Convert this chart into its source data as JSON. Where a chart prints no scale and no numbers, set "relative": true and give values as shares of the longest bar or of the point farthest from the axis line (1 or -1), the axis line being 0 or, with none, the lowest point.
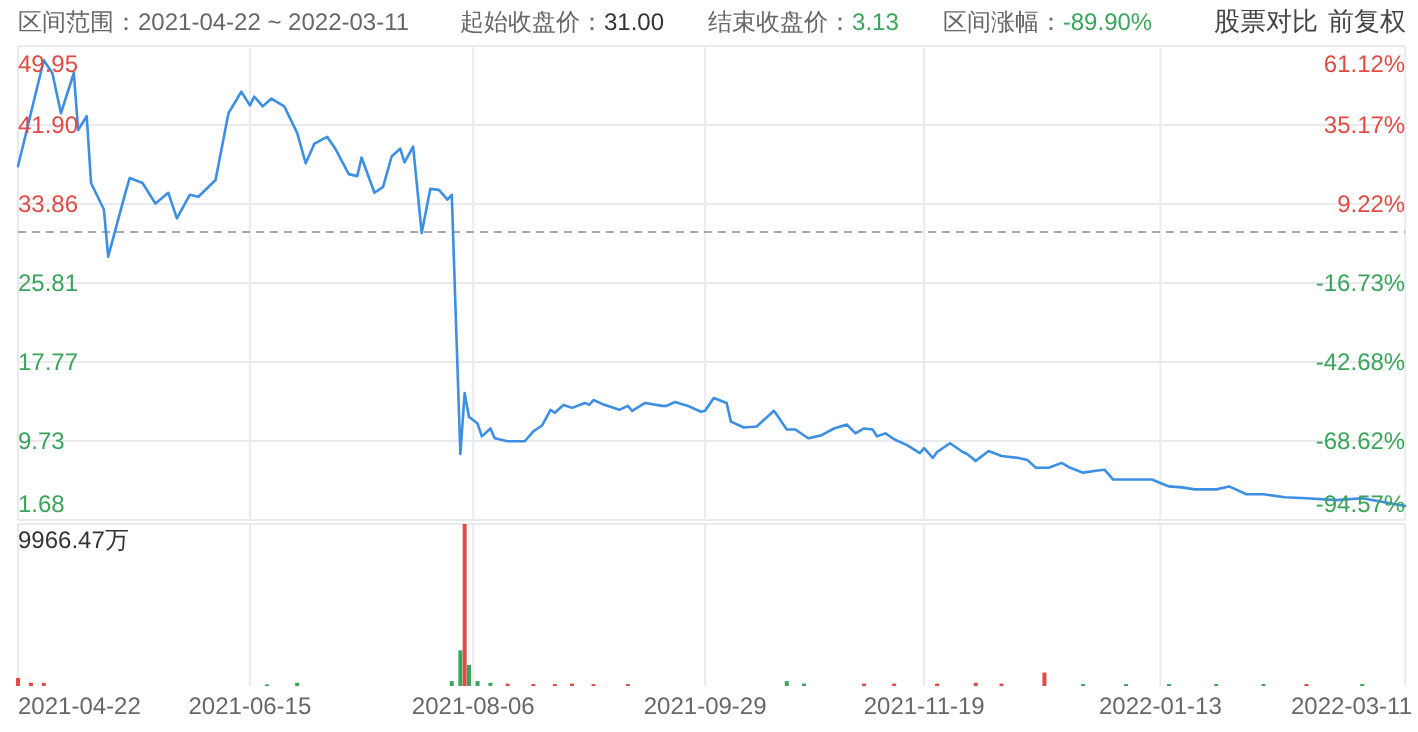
{
  "chart_data": [
    {
      "type": "line",
      "title": "区间范围：2021-04-22 ~ 2022-03-11",
      "annotations": [
        "起始收盘价：31.00",
        "结束收盘价：3.13",
        "区间涨幅：-89.90%",
        "股票对比",
        "前复权"
      ],
      "x": [
        "2021-04-22",
        "2021-04-25",
        "2021-04-28",
        "2021-04-30",
        "2021-05-02",
        "2021-05-05",
        "2021-05-06",
        "2021-05-08",
        "2021-05-09",
        "2021-05-12",
        "2021-05-13",
        "2021-05-17",
        "2021-05-18",
        "2021-05-21",
        "2021-05-24",
        "2021-05-27",
        "2021-05-29",
        "2021-06-01",
        "2021-06-03",
        "2021-06-07",
        "2021-06-10",
        "2021-06-13",
        "2021-06-15",
        "2021-06-16",
        "2021-06-18",
        "2021-06-20",
        "2021-06-23",
        "2021-06-26",
        "2021-06-28",
        "2021-06-30",
        "2021-07-03",
        "2021-07-05",
        "2021-07-08",
        "2021-07-10",
        "2021-07-11",
        "2021-07-14",
        "2021-07-16",
        "2021-07-18",
        "2021-07-20",
        "2021-07-21",
        "2021-07-23",
        "2021-07-25",
        "2021-07-27",
        "2021-07-29",
        "2021-07-31",
        "2021-08-01",
        "2021-08-03",
        "2021-08-04",
        "2021-08-05",
        "2021-08-07",
        "2021-08-08",
        "2021-08-10",
        "2021-08-11",
        "2021-08-14",
        "2021-08-18",
        "2021-08-20",
        "2021-08-22",
        "2021-08-24",
        "2021-08-25",
        "2021-08-27",
        "2021-08-29",
        "2021-09-01",
        "2021-09-02",
        "2021-09-03",
        "2021-09-05",
        "2021-09-09",
        "2021-09-11",
        "2021-09-12",
        "2021-09-15",
        "2021-09-19",
        "2021-09-20",
        "2021-09-22",
        "2021-09-25",
        "2021-09-28",
        "2021-09-29",
        "2021-10-01",
        "2021-10-04",
        "2021-10-05",
        "2021-10-08",
        "2021-10-11",
        "2021-10-15",
        "2021-10-16",
        "2021-10-18",
        "2021-10-20",
        "2021-10-23",
        "2021-10-26",
        "2021-10-29",
        "2021-11-01",
        "2021-11-03",
        "2021-11-05",
        "2021-11-07",
        "2021-11-08",
        "2021-11-10",
        "2021-11-12",
        "2021-11-15",
        "2021-11-18",
        "2021-11-19",
        "2021-11-21",
        "2021-11-22",
        "2021-11-25",
        "2021-11-28",
        "2021-11-29",
        "2021-12-01",
        "2021-12-04",
        "2021-12-07",
        "2021-12-11",
        "2021-12-13",
        "2021-12-15",
        "2021-12-18",
        "2021-12-21",
        "2021-12-23",
        "2021-12-26",
        "2021-12-29",
        "2021-12-31",
        "2022-01-02",
        "2022-01-11",
        "2022-01-15",
        "2022-01-18",
        "2022-01-21",
        "2022-01-26",
        "2022-01-29",
        "2022-02-02",
        "2022-02-06",
        "2022-02-11",
        "2022-02-16",
        "2022-02-23",
        "2022-03-01",
        "2022-03-11"
      ],
      "series": [
        {
          "color": "#3d8fe3",
          "values": [
            37.7,
            43.1,
            48.5,
            47.2,
            43.1,
            47.2,
            41.4,
            42.8,
            36.0,
            33.3,
            28.5,
            35.0,
            36.5,
            36.0,
            33.9,
            35.0,
            32.4,
            34.8,
            34.6,
            36.3,
            43.1,
            45.3,
            43.9,
            44.8,
            43.8,
            44.6,
            43.8,
            41.1,
            38.0,
            40.0,
            40.7,
            39.4,
            36.9,
            36.7,
            38.6,
            35.0,
            35.6,
            38.7,
            39.5,
            38.1,
            39.7,
            30.9,
            35.4,
            35.3,
            34.3,
            34.8,
            8.4,
            14.6,
            12.2,
            11.5,
            10.2,
            11.0,
            10.0,
            9.7,
            9.7,
            10.7,
            11.3,
            12.9,
            12.6,
            13.4,
            13.1,
            13.6,
            13.4,
            13.9,
            13.5,
            12.9,
            13.3,
            12.8,
            13.6,
            13.3,
            13.3,
            13.7,
            13.3,
            12.7,
            12.8,
            14.1,
            13.6,
            11.7,
            11.1,
            11.2,
            12.8,
            12.2,
            10.9,
            10.9,
            10.0,
            10.3,
            11.0,
            11.4,
            10.5,
            11.0,
            10.9,
            10.2,
            10.5,
            9.9,
            9.3,
            8.5,
            9.0,
            8.0,
            8.6,
            9.5,
            8.6,
            8.4,
            7.7,
            8.7,
            8.2,
            8.0,
            7.8,
            7.0,
            7.0,
            7.5,
            7.0,
            6.5,
            6.7,
            6.8,
            5.8,
            5.8,
            5.1,
            5.0,
            4.8,
            4.8,
            5.1,
            4.3,
            4.3,
            4.0,
            3.9,
            3.7,
            3.9,
            3.1
          ]
        }
      ],
      "marker": "none",
      "line_style": "solid",
      "xlim": [
        "2021-04-22",
        "2022-03-11"
      ],
      "xticks": [
        "2021-04-22",
        "2021-06-15",
        "2021-08-06",
        "2021-09-29",
        "2021-11-19",
        "2022-01-13",
        "2022-03-11"
      ],
      "ylim": [
        1.68,
        49.95
      ],
      "yticks": [
        1.68,
        9.73,
        17.77,
        25.81,
        33.86,
        {
          "value": 41.9,
          "label": "41.90"
        },
        49.95
      ],
      "y2lim": [
        -94.57,
        61.12
      ],
      "y2ticks": [
        {
          "value": -94.57,
          "label": "-94.57%"
        },
        {
          "value": -68.62,
          "label": "-68.62%"
        },
        {
          "value": -42.68,
          "label": "-42.68%"
        },
        {
          "value": -16.73,
          "label": "-16.73%"
        },
        {
          "value": 9.22,
          "label": "9.22%"
        },
        {
          "value": 35.17,
          "label": "35.17%"
        },
        {
          "value": 61.12,
          "label": "61.12%"
        }
      ],
      "ref_lines": [
        {
          "axis": "y",
          "value": 31.0,
          "color": "#aaaaaa",
          "line_style": "dashed"
        }
      ],
      "grid": true,
      "tick_labels": "y"
    },
    {
      "type": "bar",
      "relative": true,
      "annotations": [
        "9966.47万"
      ],
      "x": [
        "2021-04-22",
        "2021-04-25",
        "2021-04-28",
        "2021-06-19",
        "2021-06-26",
        "2021-08-01",
        "2021-08-03",
        "2021-08-04",
        "2021-08-05",
        "2021-08-07",
        "2021-08-10",
        "2021-08-14",
        "2021-08-20",
        "2021-08-25",
        "2021-08-29",
        "2021-09-03",
        "2021-09-11",
        "2021-10-18",
        "2021-10-22",
        "2021-11-05",
        "2021-11-12",
        "2021-11-22",
        "2021-12-01",
        "2021-12-07",
        "2021-12-17",
        "2021-12-26",
        "2022-01-05",
        "2022-01-15",
        "2022-01-26",
        "2022-02-06",
        "2022-02-16",
        "2022-03-01"
      ],
      "values": [
        0.05,
        0.02,
        0.02,
        0.01,
        0.02,
        0.03,
        0.22,
        1,
        0.13,
        0.03,
        0.02,
        0.015,
        0.012,
        0.012,
        0.015,
        0.012,
        0.012,
        0.03,
        0.015,
        0.015,
        0.015,
        0.015,
        0.02,
        0.015,
        0.083,
        0.012,
        0.012,
        0.012,
        0.012,
        0.012,
        0.012,
        0.012
      ],
      "colors": [
        "#e04b45",
        "#e04b45",
        "#e04b45",
        "#3aa55a",
        "#3aa55a",
        "#3aa55a",
        "#3aa55a",
        "#e04b45",
        "#3aa55a",
        "#3aa55a",
        "#3aa55a",
        "#e04b45",
        "#e04b45",
        "#e04b45",
        "#e04b45",
        "#e04b45",
        "#e04b45",
        "#3aa55a",
        "#3aa55a",
        "#e04b45",
        "#e04b45",
        "#e04b45",
        "#e04b45",
        "#e04b45",
        "#e04b45",
        "#3aa55a",
        "#3aa55a",
        "#3aa55a",
        "#3aa55a",
        "#3aa55a",
        "#e04b45",
        "#3aa55a"
      ],
      "xlim": [
        "2021-04-22",
        "2022-03-11"
      ],
      "xticks": [
        "2021-04-22",
        "2021-06-15",
        "2021-08-06",
        "2021-09-29",
        "2021-11-19",
        "2022-01-13",
        "2022-03-11"
      ],
      "grid": "x",
      "tick_labels": "x"
    }
  ]
}
